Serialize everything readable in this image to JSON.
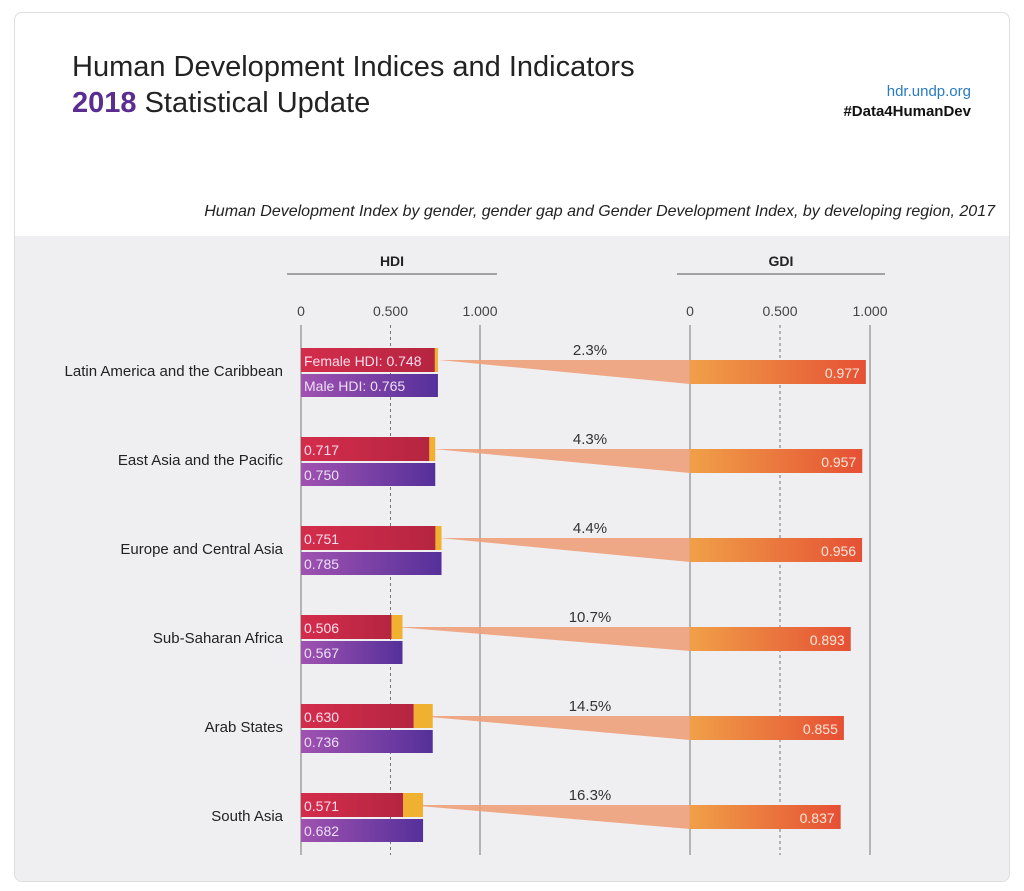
{
  "header": {
    "title_line1": "Human Development Indices and Indicators",
    "year": "2018",
    "title_line2_rest": "Statistical Update",
    "url": "hdr.undp.org",
    "hashtag": "#Data4HumanDev"
  },
  "chart_data": {
    "type": "bar",
    "title": "Human Development Index by gender, gender gap and Gender Development Index, by developing region, 2017",
    "panels": [
      {
        "name": "HDI",
        "ticks": [
          "0",
          "0.500",
          "1.000"
        ],
        "xlim": [
          0,
          1
        ]
      },
      {
        "name": "GDI",
        "ticks": [
          "0",
          "0.500",
          "1.000"
        ],
        "xlim": [
          0,
          1
        ]
      }
    ],
    "categories": [
      "Latin America and the Caribbean",
      "East Asia and the Pacific",
      "Europe and Central Asia",
      "Sub-Saharan Africa",
      "Arab States",
      "South Asia"
    ],
    "female_hdi": [
      0.748,
      0.717,
      0.751,
      0.506,
      0.63,
      0.571
    ],
    "male_hdi": [
      0.765,
      0.75,
      0.785,
      0.567,
      0.736,
      0.682
    ],
    "gender_gap": [
      "2.3%",
      "4.3%",
      "4.4%",
      "10.7%",
      "14.5%",
      "16.3%"
    ],
    "gdi": [
      0.977,
      0.957,
      0.956,
      0.893,
      0.855,
      0.837
    ],
    "female_label_prefix": "Female HDI: ",
    "male_label_prefix": "Male HDI: ",
    "colors": {
      "female": "#d42d4c",
      "male": "#6a35a0",
      "gap": "#f0b030",
      "gdi": "#e8553a",
      "funnel": "#eea07a"
    }
  }
}
